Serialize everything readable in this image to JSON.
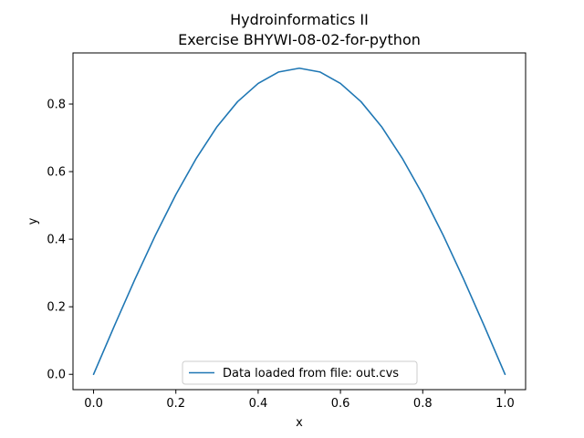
{
  "chart_data": {
    "type": "line",
    "title": [
      "Hydroinformatics II",
      "Exercise BHYWI-08-02-for-python"
    ],
    "xlabel": "x",
    "ylabel": "y",
    "xlim": [
      -0.05,
      1.05
    ],
    "ylim": [
      -0.0453,
      0.9513
    ],
    "xticks": [
      0.0,
      0.2,
      0.4,
      0.6,
      0.8,
      1.0
    ],
    "xtick_labels": [
      "0.0",
      "0.2",
      "0.4",
      "0.6",
      "0.8",
      "1.0"
    ],
    "yticks": [
      0.0,
      0.2,
      0.4,
      0.6,
      0.8
    ],
    "ytick_labels": [
      "0.0",
      "0.2",
      "0.4",
      "0.6",
      "0.8"
    ],
    "grid": false,
    "legend": {
      "placement": "lower center"
    },
    "series": [
      {
        "name": "Data loaded from file: out.cvs",
        "color": "#1f77b4",
        "x": [
          0.0,
          0.05,
          0.1,
          0.15,
          0.2,
          0.25,
          0.3,
          0.35,
          0.4,
          0.45,
          0.5,
          0.55,
          0.6,
          0.65,
          0.7,
          0.75,
          0.8,
          0.85,
          0.9,
          0.95,
          1.0
        ],
        "y": [
          0.0,
          0.142,
          0.28,
          0.411,
          0.532,
          0.64,
          0.733,
          0.807,
          0.861,
          0.895,
          0.906,
          0.895,
          0.861,
          0.807,
          0.733,
          0.64,
          0.532,
          0.411,
          0.28,
          0.142,
          0.0
        ]
      }
    ]
  }
}
